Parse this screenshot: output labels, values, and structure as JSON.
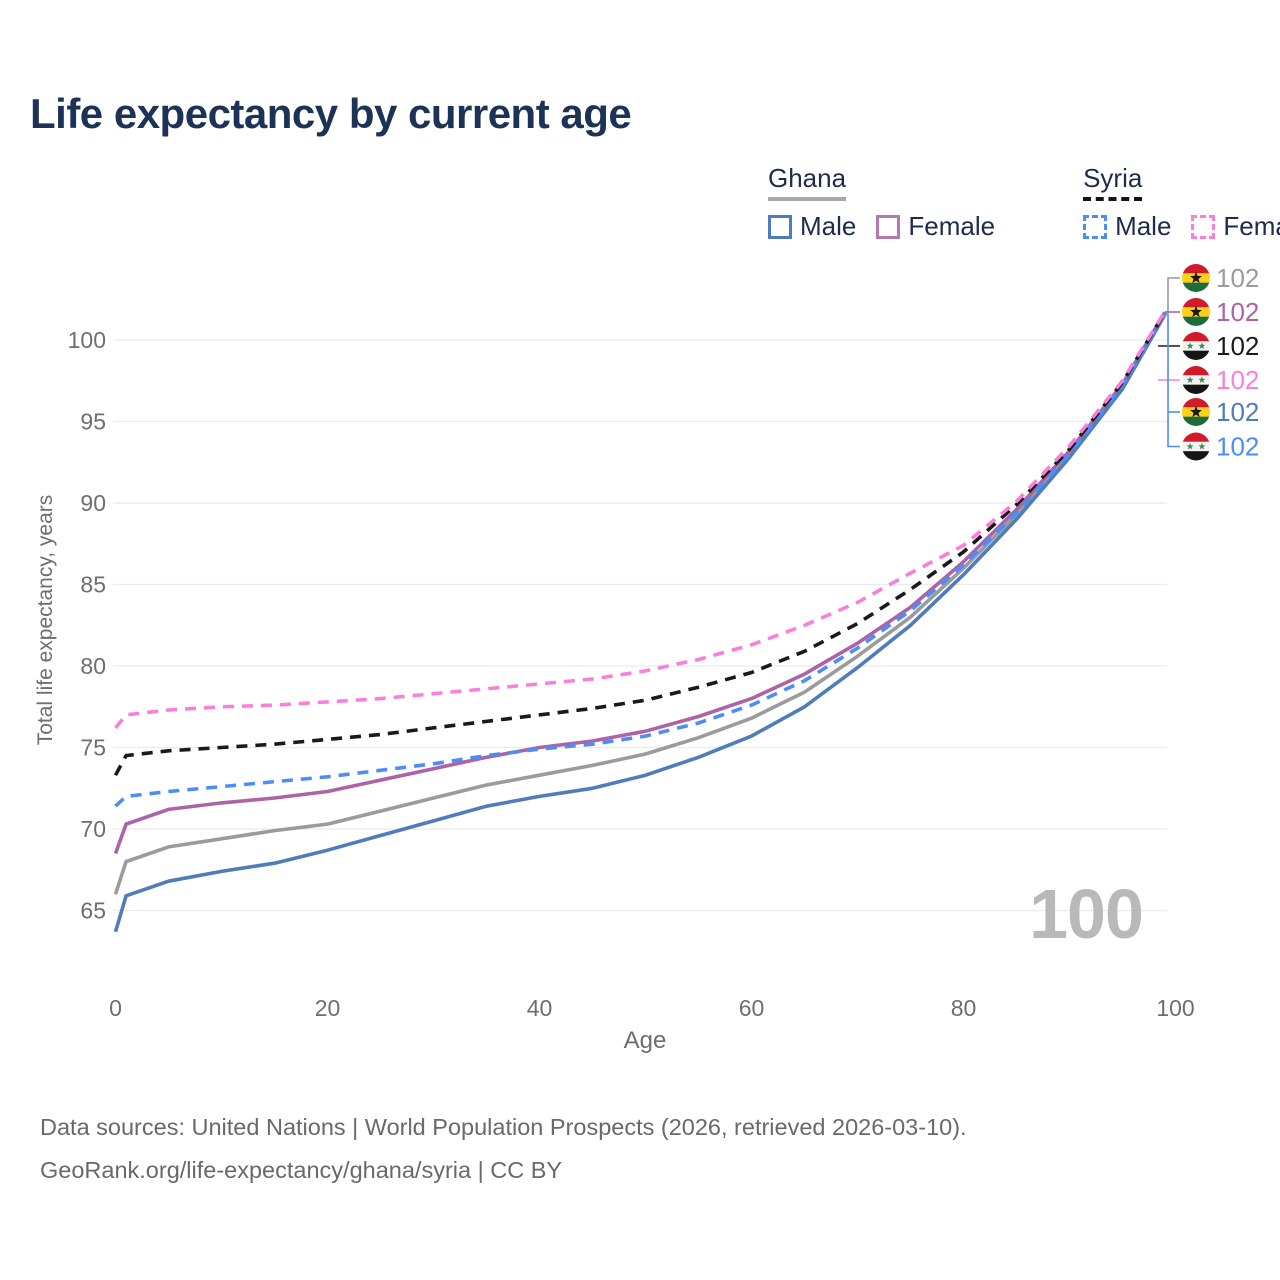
{
  "title": "Life expectancy by current age",
  "legend": {
    "groups": [
      {
        "label": "Ghana",
        "underline_style": "solid",
        "underline_color": "#a8a8a8",
        "items": [
          {
            "label": "Male",
            "color": "#4f7cba",
            "dash": false
          },
          {
            "label": "Female",
            "color": "#b279ae",
            "dash": false
          }
        ]
      },
      {
        "label": "Syria",
        "underline_style": "dashed",
        "underline_color": "#141414",
        "items": [
          {
            "label": "Male",
            "color": "#4b8ef5",
            "dash": true
          },
          {
            "label": "Female",
            "color": "#fb7ed8",
            "dash": true
          }
        ]
      }
    ]
  },
  "chart_data": {
    "type": "line",
    "title": "Life expectancy by current age",
    "xlabel": "Age",
    "ylabel": "Total life expectancy, years",
    "x_ticks": [
      0,
      20,
      40,
      60,
      80,
      100
    ],
    "y_ticks": [
      65,
      70,
      75,
      80,
      85,
      90,
      95,
      100
    ],
    "xlim": [
      0,
      100
    ],
    "ylim": [
      63,
      102.6
    ],
    "grid": true,
    "legend_position": "top-right",
    "x": [
      0,
      1,
      5,
      10,
      15,
      20,
      25,
      30,
      35,
      40,
      45,
      50,
      55,
      60,
      65,
      70,
      75,
      80,
      85,
      90,
      95,
      99
    ],
    "series": [
      {
        "name": "Ghana Both",
        "country": "ghana",
        "color": "#9b9b9b",
        "dash": false,
        "end_label": "102",
        "values": [
          66.0,
          68.0,
          68.9,
          69.4,
          69.9,
          70.3,
          71.1,
          71.9,
          72.7,
          73.3,
          73.9,
          74.6,
          75.6,
          76.8,
          78.4,
          80.6,
          83.0,
          86.0,
          89.3,
          93.0,
          97.2,
          101.6
        ]
      },
      {
        "name": "Ghana Female",
        "country": "ghana",
        "color": "#ae62a7",
        "dash": false,
        "end_label": "102",
        "values": [
          68.5,
          70.3,
          71.2,
          71.6,
          71.9,
          72.3,
          73.0,
          73.7,
          74.4,
          75.0,
          75.4,
          76.0,
          76.9,
          78.0,
          79.5,
          81.4,
          83.6,
          86.4,
          89.6,
          93.2,
          97.3,
          101.7
        ]
      },
      {
        "name": "Syria Both",
        "country": "syria",
        "color": "#1a1a1a",
        "dash": true,
        "end_label": "102",
        "values": [
          73.3,
          74.5,
          74.8,
          75.0,
          75.2,
          75.5,
          75.8,
          76.2,
          76.6,
          77.0,
          77.4,
          77.9,
          78.7,
          79.6,
          80.9,
          82.6,
          84.7,
          87.0,
          89.9,
          93.3,
          97.4,
          101.7
        ]
      },
      {
        "name": "Syria Female",
        "country": "syria",
        "color": "#fb7ed8",
        "dash": true,
        "end_label": "102",
        "values": [
          76.2,
          77.0,
          77.3,
          77.5,
          77.6,
          77.8,
          78.0,
          78.3,
          78.6,
          78.9,
          79.2,
          79.7,
          80.4,
          81.3,
          82.5,
          83.9,
          85.7,
          87.4,
          90.1,
          93.5,
          97.5,
          101.75
        ]
      },
      {
        "name": "Ghana Male",
        "country": "ghana",
        "color": "#4f7cba",
        "dash": false,
        "end_label": "102",
        "values": [
          63.7,
          65.9,
          66.8,
          67.4,
          67.9,
          68.7,
          69.6,
          70.5,
          71.4,
          72.0,
          72.5,
          73.3,
          74.4,
          75.7,
          77.5,
          79.9,
          82.5,
          85.6,
          89.0,
          92.8,
          97.0,
          101.55
        ]
      },
      {
        "name": "Syria Male",
        "country": "syria",
        "color": "#4b8ef5",
        "dash": true,
        "end_label": "102",
        "values": [
          71.4,
          72.0,
          72.3,
          72.6,
          72.9,
          73.2,
          73.6,
          74.0,
          74.5,
          74.9,
          75.2,
          75.7,
          76.5,
          77.6,
          79.1,
          81.1,
          83.4,
          86.2,
          89.4,
          93.0,
          97.2,
          101.6
        ]
      }
    ]
  },
  "axes": {
    "x": {
      "title": "Age",
      "ticks": [
        "0",
        "20",
        "40",
        "60",
        "80",
        "100"
      ]
    },
    "y": {
      "title": "Total life expectancy, years",
      "ticks": [
        "65",
        "70",
        "75",
        "80",
        "85",
        "90",
        "95",
        "100"
      ]
    }
  },
  "watermark": "100",
  "flag_colors": {
    "ghana": {
      "red": "#cf1b2a",
      "gold": "#fcd116",
      "green": "#1e6b3c",
      "star": "#1a1a1a"
    },
    "syria": {
      "red": "#cf1b2a",
      "white": "#f4f4f4",
      "black": "#151515",
      "star": "#3d8e4d"
    }
  },
  "footer": {
    "line1": "Data sources: United Nations | World Population Prospects (2026, retrieved 2026-03-10).",
    "line2": "GeoRank.org/life-expectancy/ghana/syria | CC BY"
  }
}
